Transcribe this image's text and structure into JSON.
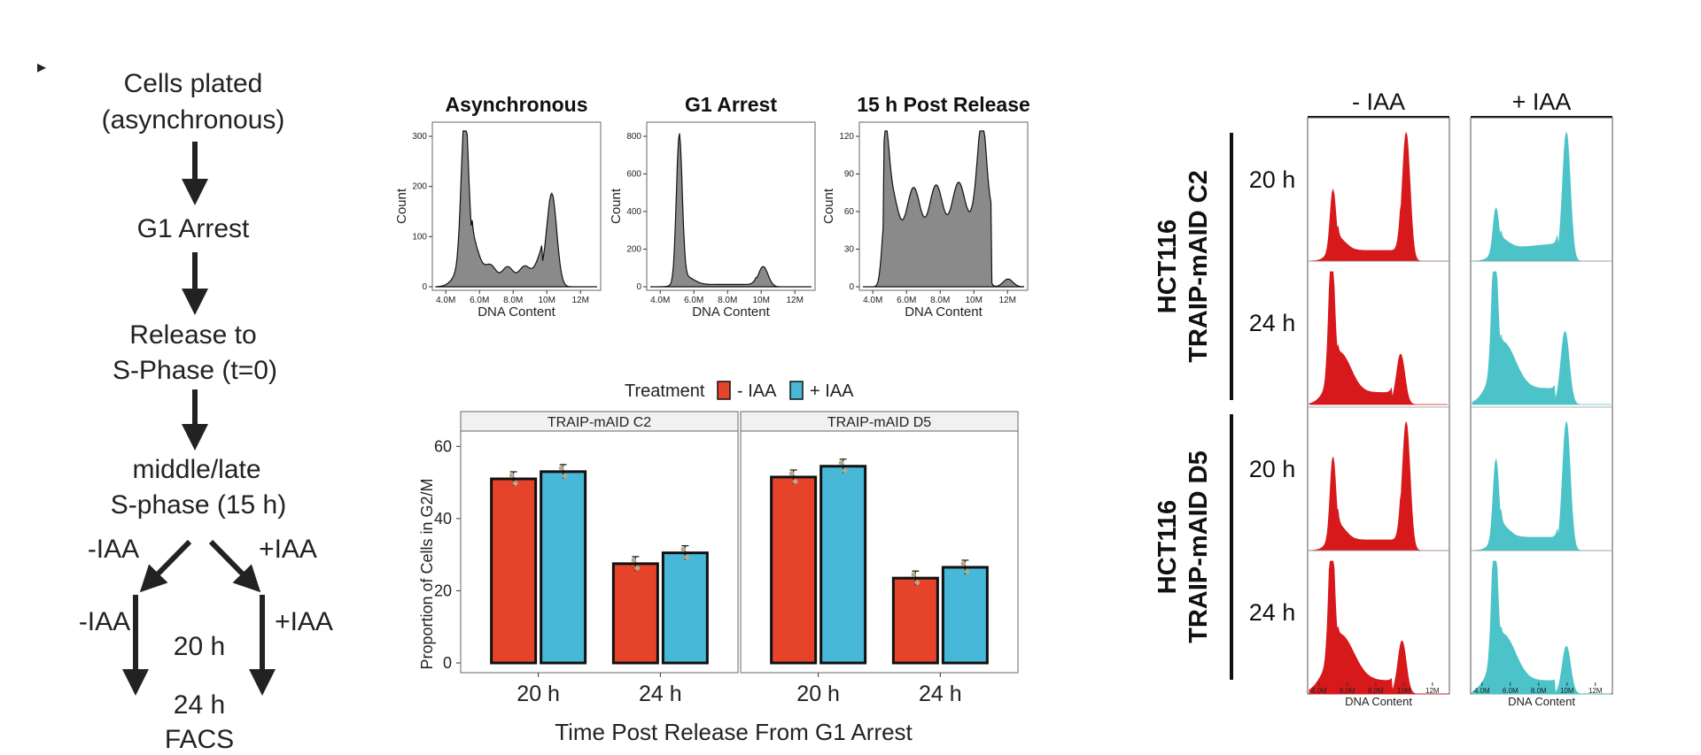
{
  "panel_marker": "▸",
  "flowchart": {
    "steps": [
      "Cells plated",
      "(asynchronous)",
      "G1 Arrest",
      "Release to",
      "S-Phase (t=0)",
      "middle/late",
      "S-phase (15 h)"
    ],
    "branch_minus_upper": "-IAA",
    "branch_plus_upper": "+IAA",
    "branch_minus_lower": "-IAA",
    "branch_plus_lower": "+IAA",
    "time_20": "20 h",
    "time_24": "24 h",
    "facs": "FACS"
  },
  "histograms": {
    "x_label": "DNA Content",
    "y_label": "Count",
    "x_ticks": [
      "4.0M",
      "6.0M",
      "8.0M",
      "10M",
      "12M"
    ],
    "panels": [
      {
        "title": "Asynchronous",
        "y_ticks": [
          "0",
          "100",
          "200",
          "300"
        ]
      },
      {
        "title": "G1 Arrest",
        "y_ticks": [
          "0",
          "200",
          "400",
          "600",
          "800"
        ]
      },
      {
        "title": "15 h Post Release",
        "y_ticks": [
          "0",
          "30",
          "60",
          "90",
          "120"
        ]
      }
    ],
    "fill_color": "#8a8a8a"
  },
  "chart_data": [
    {
      "type": "bar",
      "title": "",
      "legend_title": "Treatment",
      "legend_position": "top",
      "facets": [
        "TRAIP-mAID C2",
        "TRAIP-mAID D5"
      ],
      "categories": [
        "20 h",
        "24 h"
      ],
      "series": [
        {
          "name": "- IAA",
          "color": "#e5442b",
          "values_by_facet": [
            [
              51,
              27.5
            ],
            [
              51.5,
              23.5
            ]
          ]
        },
        {
          "name": "+ IAA",
          "color": "#47b8d8",
          "values_by_facet": [
            [
              53,
              30.5
            ],
            [
              54.5,
              26.5
            ]
          ]
        }
      ],
      "y_ticks": [
        "0",
        "20",
        "40",
        "60"
      ],
      "ylim": [
        0,
        64
      ],
      "xlabel": "Time Post Release From G1 Arrest",
      "ylabel": "Proportion of Cells in G2/M"
    }
  ],
  "flow_grid": {
    "col_heads": [
      "- IAA",
      "+ IAA"
    ],
    "row_labels": [
      "20 h",
      "24 h",
      "20 h",
      "24 h"
    ],
    "cell_lines": [
      {
        "line1": "HCT116",
        "line2": "TRAIP-mAID C2"
      },
      {
        "line1": "HCT116",
        "line2": "TRAIP-mAID D5"
      }
    ],
    "x_label": "DNA Content",
    "x_ticks": [
      "4.0M",
      "6.0M",
      "8.0M",
      "10M",
      "12M"
    ],
    "minus_color": "#d7191c",
    "plus_color": "#4cc3c8"
  }
}
